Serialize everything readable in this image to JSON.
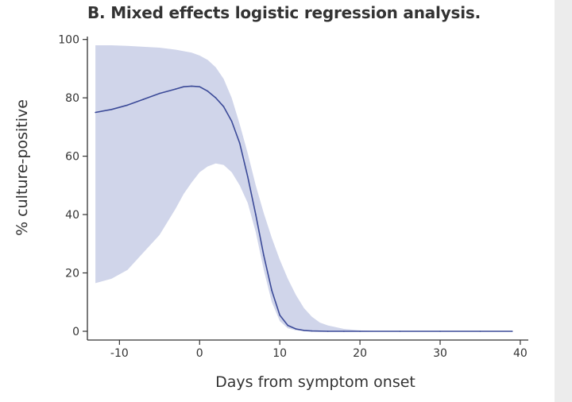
{
  "chart_data": {
    "type": "line",
    "title": "B. Mixed effects logistic regression analysis.",
    "xlabel": "Days from symptom onset",
    "ylabel": "% culture-positive",
    "xlim": [
      -14,
      41
    ],
    "ylim": [
      -3,
      101
    ],
    "x_ticks": [
      -10,
      0,
      10,
      20,
      30,
      40
    ],
    "x_tick_labels": [
      "-10",
      "0",
      "10",
      "20",
      "30",
      "40"
    ],
    "y_ticks": [
      0,
      20,
      40,
      60,
      80,
      100
    ],
    "y_tick_labels": [
      "0",
      "20",
      "40",
      "60",
      "80",
      "100"
    ],
    "grid": false,
    "colors": {
      "line": "#3b4a98",
      "band": "#d0d5ea",
      "axis": "#333333"
    },
    "series": [
      {
        "x": [
          -13,
          -11,
          -9,
          -7,
          -5,
          -3,
          -2,
          -1,
          0,
          1,
          2,
          3,
          4,
          5,
          6,
          7,
          8,
          9,
          10,
          11,
          12,
          13,
          14,
          16,
          18,
          20,
          25,
          30,
          35,
          39
        ],
        "y": [
          75,
          76,
          77.5,
          79.5,
          81.5,
          83,
          83.8,
          84,
          83.8,
          82.3,
          80,
          77,
          72,
          64.5,
          53,
          40,
          26,
          14,
          5.5,
          2,
          0.8,
          0.3,
          0.1,
          0,
          0,
          0,
          0,
          0,
          0,
          0
        ]
      }
    ],
    "band": {
      "x": [
        -13,
        -11,
        -9,
        -7,
        -5,
        -3,
        -2,
        -1,
        0,
        1,
        2,
        3,
        4,
        5,
        6,
        7,
        8,
        9,
        10,
        11,
        12,
        13,
        14,
        15,
        16,
        18,
        20,
        22,
        25,
        30,
        35,
        39
      ],
      "upper": [
        98,
        98,
        97.8,
        97.5,
        97.2,
        96.5,
        96,
        95.5,
        94.5,
        93,
        90.5,
        86.5,
        80,
        71,
        61,
        50,
        40.5,
        32,
        24.5,
        18,
        12.5,
        8,
        5,
        3,
        2,
        0.8,
        0.3,
        0.1,
        0,
        0,
        0,
        0
      ],
      "lower": [
        16.5,
        18,
        21,
        27,
        33,
        42,
        47,
        51,
        54.5,
        56.5,
        57.5,
        57,
        54.5,
        50,
        44,
        34,
        21,
        10,
        3.5,
        1,
        0.3,
        0.1,
        0,
        0,
        0,
        0,
        0,
        0,
        0,
        0,
        0,
        0
      ]
    }
  }
}
